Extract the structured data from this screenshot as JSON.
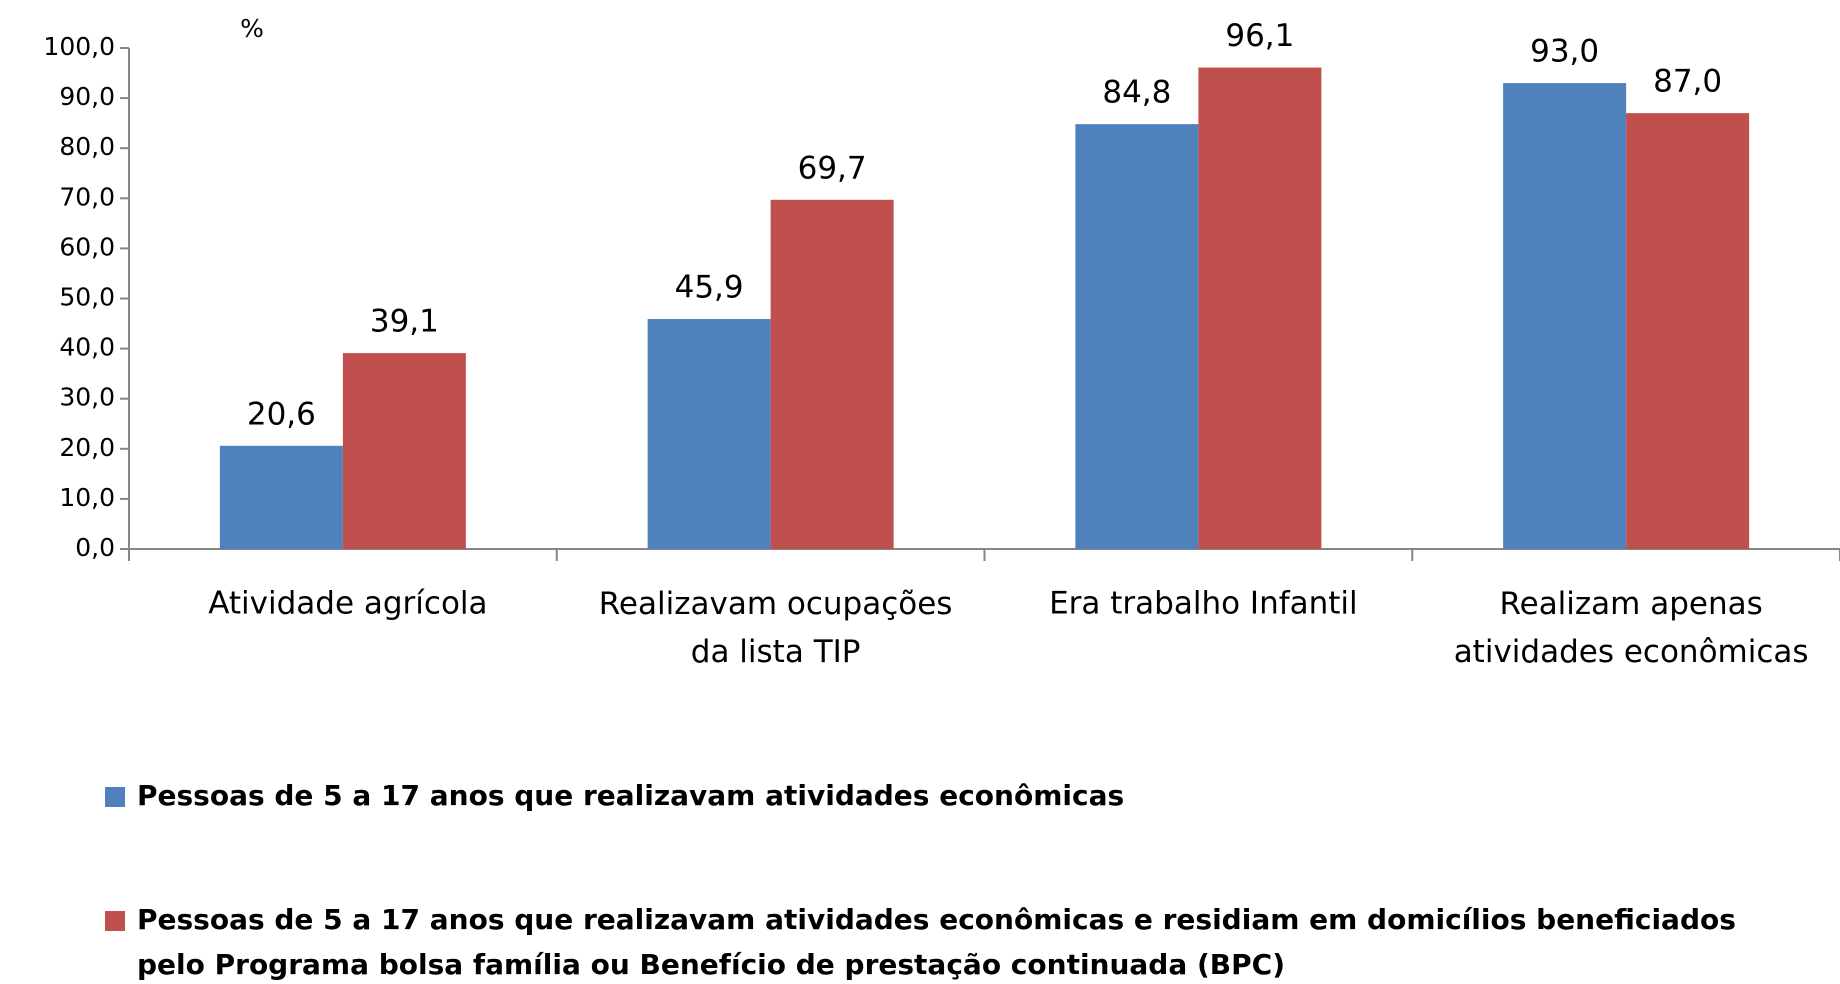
{
  "chart_data": {
    "type": "bar",
    "ylabel": "%",
    "categories": [
      "Atividade agrícola",
      "Realizavam ocupações\nda lista TIP",
      "Era trabalho Infantil",
      "Realizam apenas\natividades econômicas"
    ],
    "series": [
      {
        "name": "Pessoas de 5 a 17 anos que realizavam atividades econômicas",
        "color": "#4f81bd",
        "values": [
          20.6,
          45.9,
          84.8,
          93.0
        ],
        "value_labels": [
          "20,6",
          "45,9",
          "84,8",
          "93,0"
        ]
      },
      {
        "name": "Pessoas de 5 a 17 anos que realizavam atividades econômicas e residiam em domicílios beneficiados\npelo Programa bolsa família ou Benefício de prestação continuada (BPC)",
        "color": "#c0504d",
        "values": [
          39.1,
          69.7,
          96.1,
          87.0
        ],
        "value_labels": [
          "39,1",
          "69,7",
          "96,1",
          "87,0"
        ]
      }
    ],
    "ylim": [
      0,
      100
    ],
    "yticks": [
      {
        "value": 0,
        "label": "0,0"
      },
      {
        "value": 10,
        "label": "10,0"
      },
      {
        "value": 20,
        "label": "20,0"
      },
      {
        "value": 30,
        "label": "30,0"
      },
      {
        "value": 40,
        "label": "40,0"
      },
      {
        "value": 50,
        "label": "50,0"
      },
      {
        "value": 60,
        "label": "60,0"
      },
      {
        "value": 70,
        "label": "70,0"
      },
      {
        "value": 80,
        "label": "80,0"
      },
      {
        "value": 90,
        "label": "90,0"
      },
      {
        "value": 100,
        "label": "100,0"
      }
    ],
    "grid": false,
    "legend": "bottom"
  }
}
